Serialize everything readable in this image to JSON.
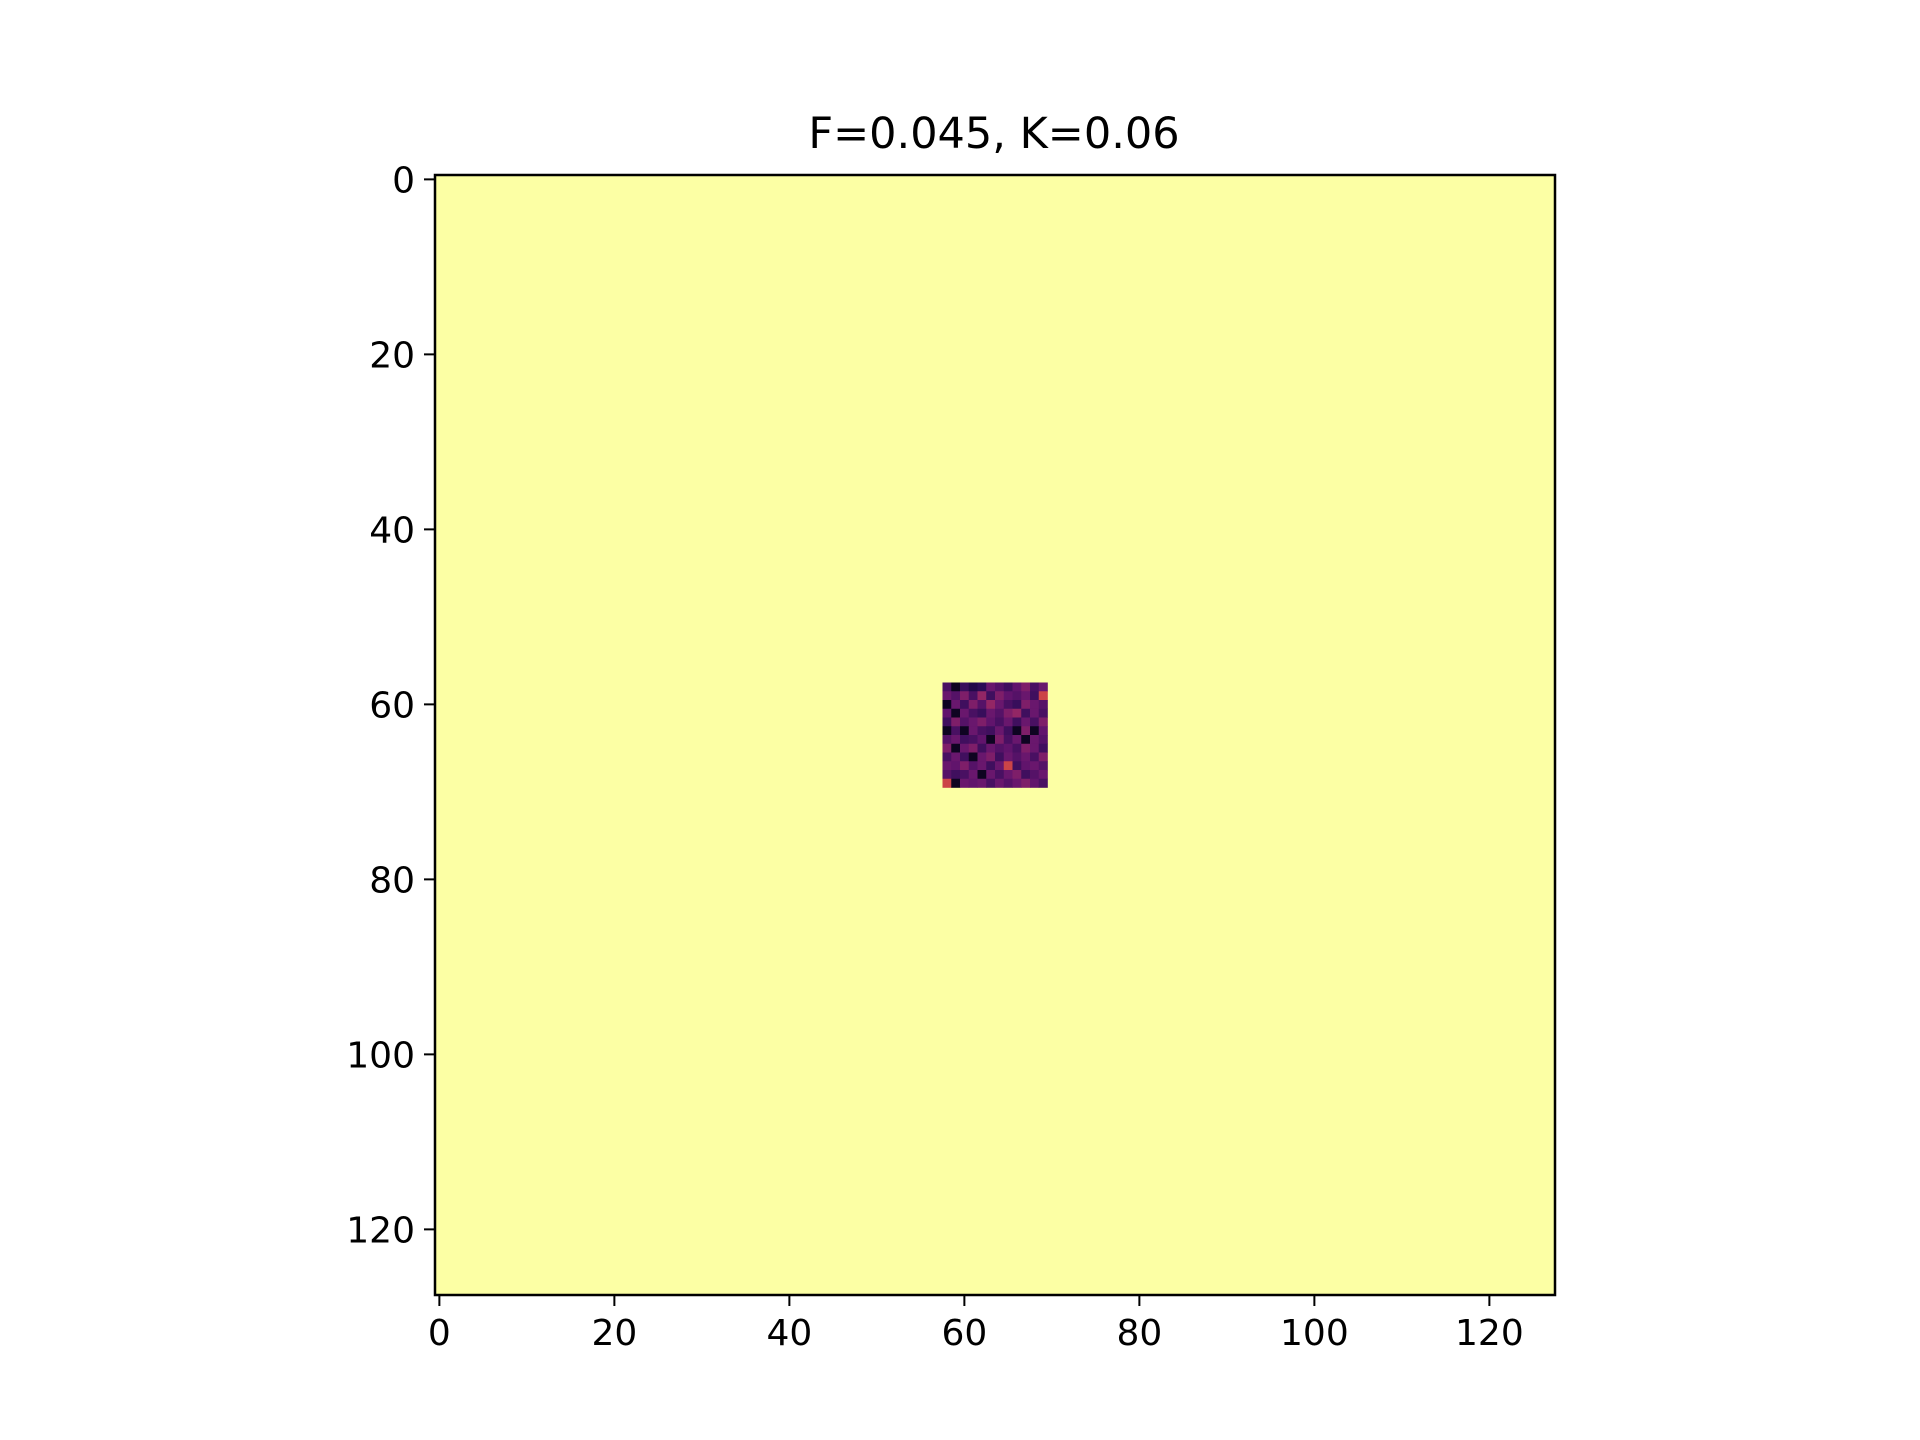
{
  "chart_data": {
    "type": "heatmap",
    "title": "F=0.045, K=0.06",
    "xlabel": "",
    "ylabel": "",
    "grid": false,
    "x_range": [
      -0.5,
      127.5
    ],
    "y_range": [
      -0.5,
      127.5
    ],
    "y_inverted": true,
    "x_ticks": [
      0,
      20,
      40,
      60,
      80,
      100,
      120
    ],
    "y_ticks": [
      0,
      20,
      40,
      60,
      80,
      100,
      120
    ],
    "x_tick_labels": [
      "0",
      "20",
      "40",
      "60",
      "80",
      "100",
      "120"
    ],
    "y_tick_labels": [
      "0",
      "20",
      "40",
      "60",
      "80",
      "100",
      "120"
    ],
    "colormap": "inferno",
    "background_value": 1.0,
    "patch": {
      "col_start": 58,
      "row_start": 58,
      "values": [
        [
          0.22,
          0.05,
          0.18,
          0.12,
          0.15,
          0.3,
          0.25,
          0.2,
          0.28,
          0.35,
          0.22,
          0.3
        ],
        [
          0.3,
          0.25,
          0.35,
          0.22,
          0.4,
          0.2,
          0.35,
          0.28,
          0.25,
          0.3,
          0.2,
          0.55
        ],
        [
          0.05,
          0.3,
          0.2,
          0.35,
          0.25,
          0.4,
          0.3,
          0.22,
          0.18,
          0.35,
          0.3,
          0.25
        ],
        [
          0.28,
          0.05,
          0.3,
          0.22,
          0.18,
          0.3,
          0.25,
          0.35,
          0.4,
          0.2,
          0.3,
          0.22
        ],
        [
          0.2,
          0.35,
          0.25,
          0.3,
          0.35,
          0.28,
          0.22,
          0.3,
          0.2,
          0.3,
          0.22,
          0.35
        ],
        [
          0.05,
          0.22,
          0.05,
          0.3,
          0.22,
          0.2,
          0.3,
          0.2,
          0.05,
          0.35,
          0.05,
          0.28
        ],
        [
          0.25,
          0.3,
          0.2,
          0.22,
          0.28,
          0.05,
          0.35,
          0.22,
          0.3,
          0.05,
          0.3,
          0.25
        ],
        [
          0.35,
          0.05,
          0.3,
          0.35,
          0.2,
          0.3,
          0.25,
          0.28,
          0.22,
          0.35,
          0.3,
          0.2
        ],
        [
          0.22,
          0.3,
          0.2,
          0.05,
          0.3,
          0.35,
          0.2,
          0.3,
          0.25,
          0.3,
          0.22,
          0.35
        ],
        [
          0.3,
          0.28,
          0.35,
          0.25,
          0.3,
          0.2,
          0.3,
          0.55,
          0.2,
          0.28,
          0.3,
          0.25
        ],
        [
          0.25,
          0.2,
          0.22,
          0.3,
          0.05,
          0.3,
          0.22,
          0.3,
          0.35,
          0.2,
          0.25,
          0.3
        ],
        [
          0.55,
          0.05,
          0.3,
          0.28,
          0.3,
          0.22,
          0.3,
          0.25,
          0.3,
          0.35,
          0.28,
          0.22
        ]
      ]
    }
  }
}
